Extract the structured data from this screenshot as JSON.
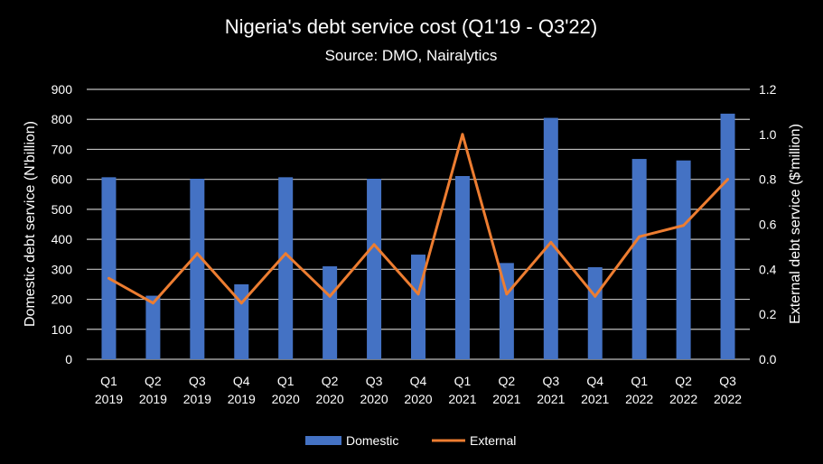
{
  "chart_data": {
    "type": "bar+line",
    "title": "Nigeria's debt service cost (Q1'19 - Q3'22)",
    "subtitle": "Source: DMO, Nairalytics",
    "categories": [
      [
        "Q1",
        "2019"
      ],
      [
        "Q2",
        "2019"
      ],
      [
        "Q3",
        "2019"
      ],
      [
        "Q4",
        "2019"
      ],
      [
        "Q1",
        "2020"
      ],
      [
        "Q2",
        "2020"
      ],
      [
        "Q3",
        "2020"
      ],
      [
        "Q4",
        "2020"
      ],
      [
        "Q1",
        "2021"
      ],
      [
        "Q2",
        "2021"
      ],
      [
        "Q3",
        "2021"
      ],
      [
        "Q4",
        "2021"
      ],
      [
        "Q1",
        "2022"
      ],
      [
        "Q2",
        "2022"
      ],
      [
        "Q3",
        "2022"
      ]
    ],
    "series": [
      {
        "name": "Domestic",
        "type": "bar",
        "axis": "left",
        "color": "#4472C4",
        "values": [
          607,
          212,
          602,
          250,
          607,
          310,
          602,
          349,
          611,
          321,
          805,
          307,
          668,
          663,
          819
        ]
      },
      {
        "name": "External",
        "type": "line",
        "axis": "right",
        "color": "#ED7D31",
        "values": [
          0.36,
          0.25,
          0.47,
          0.25,
          0.47,
          0.28,
          0.51,
          0.29,
          1.0,
          0.29,
          0.52,
          0.28,
          0.545,
          0.595,
          0.8
        ]
      }
    ],
    "ylabel": "Domestic debt service (N'billion)",
    "ylabel_right": "External debt service ($'million)",
    "ylim": [
      0,
      900
    ],
    "ylim_right": [
      0,
      1.2
    ],
    "yticks": [
      "0",
      "100",
      "200",
      "300",
      "400",
      "500",
      "600",
      "700",
      "800",
      "900"
    ],
    "yticks_right": [
      "0.0",
      "0.2",
      "0.4",
      "0.6",
      "0.8",
      "1.0",
      "1.2"
    ],
    "grid": true,
    "legend": "bottom"
  }
}
